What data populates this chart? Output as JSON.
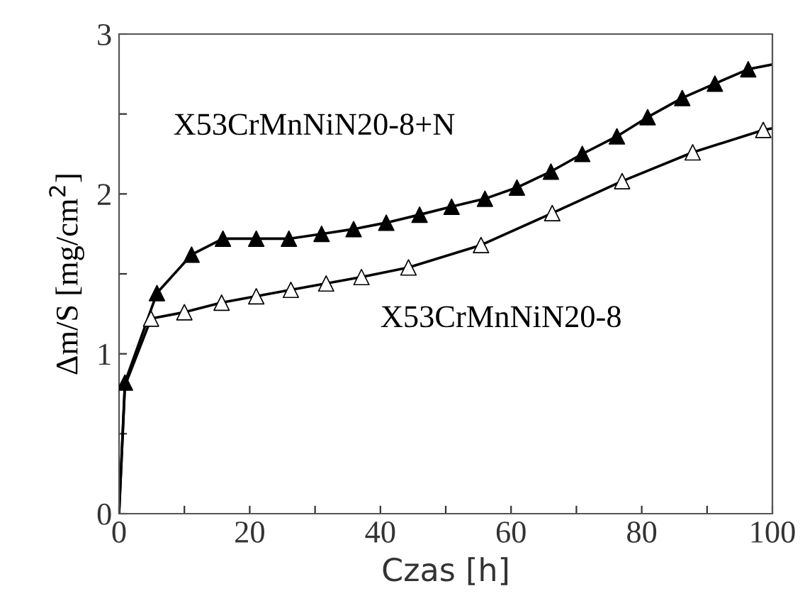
{
  "chart_data": {
    "type": "line",
    "xlabel": "Czas [h]",
    "ylabel": "Δm/S [mg/cm$^{2}$]",
    "xlim": [
      0,
      100
    ],
    "ylim": [
      0,
      3
    ],
    "xticks": [
      0,
      {
        "value": 10,
        "label": null
      },
      20,
      {
        "value": 30,
        "label": null
      },
      40,
      {
        "value": 50,
        "label": null
      },
      60,
      {
        "value": 70,
        "label": null
      },
      80,
      {
        "value": 90,
        "label": null
      },
      100
    ],
    "yticks": [
      0,
      {
        "value": 0.5,
        "label": null
      },
      1,
      {
        "value": 1.5,
        "label": null
      },
      2,
      {
        "value": 2.5,
        "label": null
      },
      3
    ],
    "grid": false,
    "legend": false,
    "series": [
      {
        "color": "#000000",
        "marker": "none",
        "line_style": "solid",
        "x": [
          0,
          0.9,
          5.8,
          11.1,
          15.9,
          21.0,
          26.0,
          31.0,
          35.9,
          40.9,
          46.0,
          50.9,
          56.0,
          60.9,
          66.1,
          70.9,
          76.2,
          80.9,
          86.2,
          91.2,
          96.3,
          100
        ],
        "values": [
          0,
          0.82,
          1.38,
          1.62,
          1.72,
          1.72,
          1.72,
          1.75,
          1.78,
          1.82,
          1.87,
          1.92,
          1.97,
          2.04,
          2.14,
          2.25,
          2.36,
          2.48,
          2.6,
          2.69,
          2.78,
          2.81
        ]
      },
      {
        "type": "scatter",
        "color": "#000000",
        "marker": "triangle",
        "x": [
          0.9,
          5.8,
          11.1,
          15.9,
          21.0,
          26.0,
          31.0,
          35.9,
          40.9,
          46.0,
          50.9,
          56.0,
          60.9,
          66.1,
          70.9,
          76.2,
          80.9,
          86.2,
          91.2,
          96.3
        ],
        "values": [
          0.82,
          1.38,
          1.62,
          1.72,
          1.72,
          1.72,
          1.75,
          1.78,
          1.82,
          1.87,
          1.92,
          1.97,
          2.04,
          2.14,
          2.25,
          2.36,
          2.48,
          2.6,
          2.69,
          2.78
        ]
      },
      {
        "color": "#000000",
        "marker": "none",
        "line_style": "solid",
        "x": [
          0,
          0.9,
          4.9,
          10.0,
          15.7,
          21.0,
          26.3,
          31.7,
          37.1,
          44.3,
          55.4,
          66.3,
          77.0,
          87.8,
          98.6,
          100
        ],
        "values": [
          0,
          0.8,
          1.22,
          1.26,
          1.32,
          1.36,
          1.4,
          1.44,
          1.48,
          1.54,
          1.68,
          1.88,
          2.08,
          2.26,
          2.4,
          2.41
        ]
      },
      {
        "type": "scatter",
        "color": "#ffffff",
        "marker": "triangle",
        "x": [
          4.9,
          10.0,
          15.7,
          21.0,
          26.3,
          31.7,
          37.1,
          44.3,
          55.4,
          66.3,
          77.0,
          87.8,
          98.6
        ],
        "values": [
          1.22,
          1.26,
          1.32,
          1.36,
          1.4,
          1.44,
          1.48,
          1.54,
          1.68,
          1.88,
          2.08,
          2.26,
          2.4
        ]
      }
    ],
    "annotations": [
      "X53CrMnNiN20-8+N",
      "X53CrMnNiN20-8"
    ]
  }
}
